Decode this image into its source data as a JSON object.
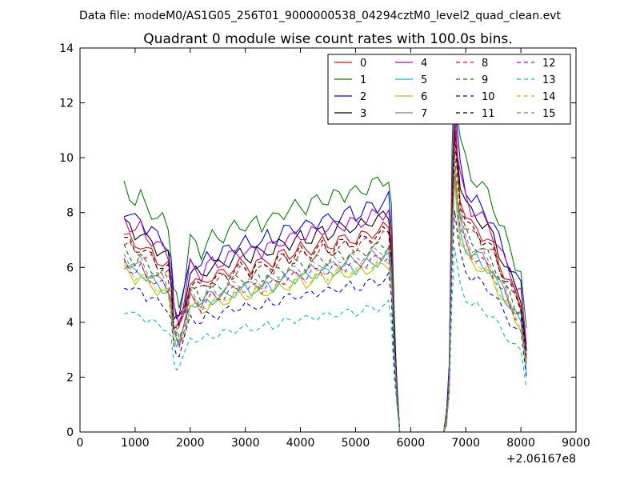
{
  "chart_data": {
    "type": "line",
    "suptitle": "Data file: modeM0/AS1G05_256T01_9000000538_04294cztM0_level2_quad_clean.evt",
    "title": "Quadrant 0 module wise count rates with 100.0s bins.",
    "xlabel": "",
    "ylabel": "",
    "x_offset_label": "+2.06167e8",
    "xlim": [
      0,
      9000
    ],
    "ylim": [
      0,
      14
    ],
    "xticks": [
      "0",
      "1000",
      "2000",
      "3000",
      "4000",
      "5000",
      "6000",
      "7000",
      "8000",
      "9000"
    ],
    "yticks": [
      "0",
      "2",
      "4",
      "6",
      "8",
      "10",
      "12",
      "14"
    ],
    "grid": false,
    "legend_position": "top-right",
    "x": [
      800,
      900,
      1000,
      1100,
      1200,
      1300,
      1400,
      1500,
      1600,
      1650,
      1700,
      1750,
      1800,
      1900,
      2000,
      2100,
      2200,
      2300,
      2400,
      2500,
      2600,
      2700,
      2800,
      2900,
      3000,
      3100,
      3200,
      3300,
      3400,
      3500,
      3600,
      3700,
      3800,
      3900,
      4000,
      4100,
      4200,
      4300,
      4400,
      4500,
      4600,
      4700,
      4800,
      4900,
      5000,
      5100,
      5200,
      5300,
      5400,
      5500,
      5600,
      5650,
      5700,
      5750,
      5800,
      5850,
      5900,
      6000,
      6100,
      6200,
      6300,
      6400,
      6500,
      6600,
      6650,
      6700,
      6750,
      6800,
      6850,
      6900,
      7000,
      7100,
      7200,
      7300,
      7400,
      7500,
      7600,
      7700,
      7800,
      7900,
      8000,
      8100
    ],
    "base_series_values": [
      7.2,
      7.0,
      6.8,
      6.9,
      6.6,
      6.5,
      6.3,
      6.2,
      6.0,
      5.4,
      4.1,
      3.9,
      3.8,
      4.5,
      5.6,
      5.5,
      5.3,
      5.6,
      5.7,
      5.7,
      5.8,
      5.9,
      6.0,
      6.1,
      6.1,
      6.0,
      6.2,
      6.1,
      6.3,
      6.2,
      6.4,
      6.5,
      6.5,
      6.6,
      6.7,
      6.6,
      6.7,
      6.8,
      6.9,
      6.8,
      6.9,
      7.0,
      7.0,
      7.1,
      7.0,
      7.1,
      7.2,
      7.3,
      7.3,
      7.4,
      7.5,
      6.5,
      3.5,
      1.5,
      0.0,
      0.0,
      0.0,
      0.0,
      0.0,
      0.0,
      0.0,
      0.0,
      0.0,
      0.0,
      0.5,
      2.0,
      8.0,
      11.0,
      9.5,
      8.6,
      7.9,
      7.5,
      7.4,
      7.2,
      7.0,
      6.7,
      6.2,
      5.8,
      5.4,
      5.0,
      4.7,
      2.8
    ],
    "series": [
      {
        "name": "0",
        "color": "#ff0000",
        "dash": "solid",
        "level": 1.0
      },
      {
        "name": "1",
        "color": "#008000",
        "dash": "solid",
        "level": 1.24
      },
      {
        "name": "2",
        "color": "#0000ff",
        "dash": "solid",
        "level": 1.13
      },
      {
        "name": "3",
        "color": "#000000",
        "dash": "solid",
        "level": 1.06
      },
      {
        "name": "4",
        "color": "#bf00bf",
        "dash": "solid",
        "level": 1.08
      },
      {
        "name": "5",
        "color": "#00bfbf",
        "dash": "solid",
        "level": 0.85
      },
      {
        "name": "6",
        "color": "#bfbf00",
        "dash": "solid",
        "level": 0.82
      },
      {
        "name": "7",
        "color": "#808080",
        "dash": "solid",
        "level": 0.88
      },
      {
        "name": "8",
        "color": "#ff0000",
        "dash": "dashed",
        "level": 0.96
      },
      {
        "name": "9",
        "color": "#008000",
        "dash": "dashed",
        "level": 0.92
      },
      {
        "name": "10",
        "color": "#0000ff",
        "dash": "dashed",
        "level": 0.75
      },
      {
        "name": "11",
        "color": "#000000",
        "dash": "dashed",
        "level": 0.98
      },
      {
        "name": "12",
        "color": "#bf00bf",
        "dash": "dashed",
        "level": 0.86
      },
      {
        "name": "13",
        "color": "#00bfbf",
        "dash": "dashed",
        "level": 0.62
      },
      {
        "name": "14",
        "color": "#bfbf00",
        "dash": "dashed",
        "level": 0.84
      },
      {
        "name": "15",
        "color": "#808080",
        "dash": "dashed",
        "level": 0.9
      }
    ]
  }
}
